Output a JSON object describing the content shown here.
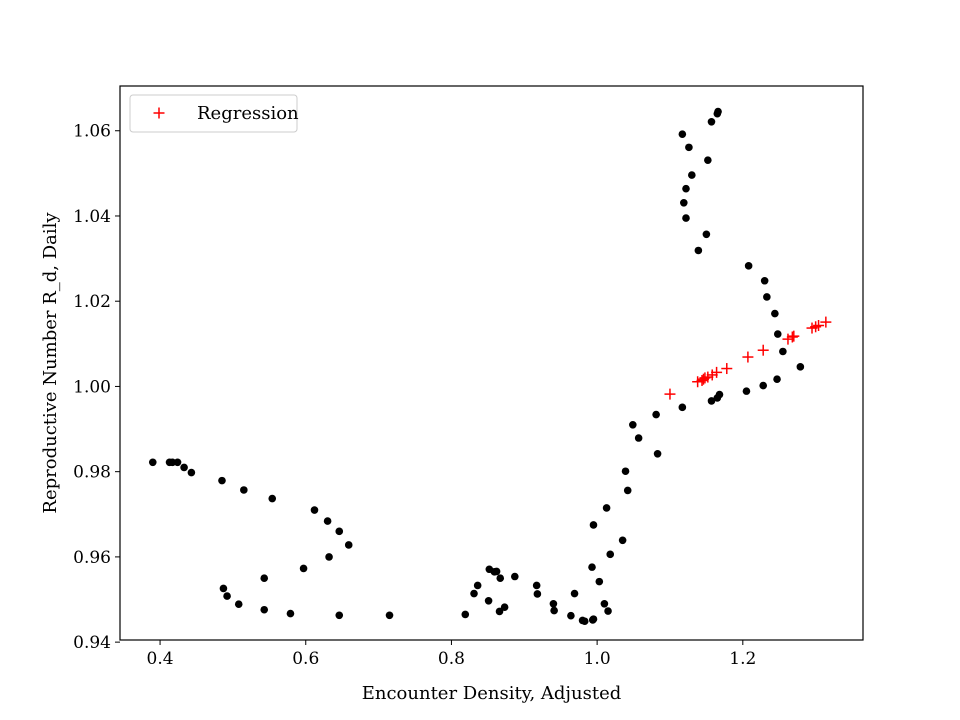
{
  "chart_data": {
    "type": "scatter",
    "title": "",
    "xlabel": "Encounter Density, Adjusted",
    "ylabel": "Reproductive Number R_d, Daily",
    "xlim": [
      0.345,
      1.365
    ],
    "ylim": [
      0.9405,
      1.0705
    ],
    "xticks": [
      0.4,
      0.6,
      0.8,
      1.0,
      1.2
    ],
    "xtick_labels": [
      "0.4",
      "0.6",
      "0.8",
      "1.0",
      "1.2"
    ],
    "yticks": [
      0.94,
      0.96,
      0.98,
      1.0,
      1.02,
      1.04,
      1.06
    ],
    "ytick_labels": [
      "0.94",
      "0.96",
      "0.98",
      "1.00",
      "1.02",
      "1.04",
      "1.06"
    ],
    "grid": false,
    "legend_position": "top-left",
    "series": [
      {
        "name": "",
        "marker": "circle",
        "color": "#000000",
        "points": [
          [
            0.39,
            0.9822
          ],
          [
            0.413,
            0.9822
          ],
          [
            0.417,
            0.9822
          ],
          [
            0.424,
            0.9822
          ],
          [
            0.433,
            0.981
          ],
          [
            0.443,
            0.9798
          ],
          [
            0.485,
            0.9779
          ],
          [
            0.515,
            0.9757
          ],
          [
            0.554,
            0.9737
          ],
          [
            0.612,
            0.971
          ],
          [
            0.63,
            0.9684
          ],
          [
            0.646,
            0.966
          ],
          [
            0.659,
            0.9628
          ],
          [
            0.632,
            0.96
          ],
          [
            0.597,
            0.9573
          ],
          [
            0.543,
            0.955
          ],
          [
            0.487,
            0.9526
          ],
          [
            0.492,
            0.9508
          ],
          [
            0.508,
            0.9489
          ],
          [
            0.543,
            0.9476
          ],
          [
            0.579,
            0.9467
          ],
          [
            0.646,
            0.9463
          ],
          [
            0.715,
            0.9463
          ],
          [
            0.819,
            0.9465
          ],
          [
            0.851,
            0.9497
          ],
          [
            0.831,
            0.9514
          ],
          [
            0.836,
            0.9533
          ],
          [
            0.852,
            0.9571
          ],
          [
            0.859,
            0.9565
          ],
          [
            0.862,
            0.9566
          ],
          [
            0.867,
            0.955
          ],
          [
            0.887,
            0.9554
          ],
          [
            0.866,
            0.9472
          ],
          [
            0.873,
            0.9482
          ],
          [
            0.917,
            0.9533
          ],
          [
            0.918,
            0.9513
          ],
          [
            0.94,
            0.949
          ],
          [
            0.941,
            0.9474
          ],
          [
            0.964,
            0.9462
          ],
          [
            0.969,
            0.9514
          ],
          [
            0.98,
            0.9451
          ],
          [
            0.983,
            0.9449
          ],
          [
            0.994,
            0.9452
          ],
          [
            0.995,
            0.9454
          ],
          [
            1.003,
            0.9542
          ],
          [
            0.993,
            0.9576
          ],
          [
            1.01,
            0.949
          ],
          [
            1.015,
            0.9473
          ],
          [
            0.995,
            0.9675
          ],
          [
            1.013,
            0.9715
          ],
          [
            1.018,
            0.9606
          ],
          [
            1.035,
            0.9639
          ],
          [
            1.039,
            0.9801
          ],
          [
            1.042,
            0.9756
          ],
          [
            1.049,
            0.991
          ],
          [
            1.057,
            0.9879
          ],
          [
            1.081,
            0.9934
          ],
          [
            1.083,
            0.9842
          ],
          [
            1.117,
            0.9951
          ],
          [
            1.157,
            0.9966
          ],
          [
            1.165,
            0.9973
          ],
          [
            1.168,
            0.9981
          ],
          [
            1.205,
            0.9989
          ],
          [
            1.228,
            1.0002
          ],
          [
            1.247,
            1.0017
          ],
          [
            1.279,
            1.0046
          ],
          [
            1.255,
            1.0082
          ],
          [
            1.248,
            1.0123
          ],
          [
            1.244,
            1.0171
          ],
          [
            1.233,
            1.021
          ],
          [
            1.23,
            1.0248
          ],
          [
            1.208,
            1.0283
          ],
          [
            1.139,
            1.0319
          ],
          [
            1.15,
            1.0357
          ],
          [
            1.122,
            1.0395
          ],
          [
            1.119,
            1.0431
          ],
          [
            1.122,
            1.0464
          ],
          [
            1.13,
            1.0496
          ],
          [
            1.152,
            1.0531
          ],
          [
            1.126,
            1.0561
          ],
          [
            1.117,
            1.0592
          ],
          [
            1.157,
            1.0621
          ],
          [
            1.165,
            1.064
          ],
          [
            1.166,
            1.0645
          ]
        ]
      },
      {
        "name": "Regression",
        "marker": "plus",
        "color": "#ff0000",
        "points": [
          [
            1.1,
            0.9982
          ],
          [
            1.138,
            1.0011
          ],
          [
            1.144,
            1.0014
          ],
          [
            1.146,
            1.0017
          ],
          [
            1.148,
            1.002
          ],
          [
            1.152,
            1.0022
          ],
          [
            1.158,
            1.0027
          ],
          [
            1.164,
            1.0033
          ],
          [
            1.178,
            1.0042
          ],
          [
            1.207,
            1.0069
          ],
          [
            1.228,
            1.0085
          ],
          [
            1.262,
            1.0111
          ],
          [
            1.268,
            1.0116
          ],
          [
            1.27,
            1.0118
          ],
          [
            1.295,
            1.0137
          ],
          [
            1.3,
            1.014
          ],
          [
            1.304,
            1.0143
          ],
          [
            1.314,
            1.0151
          ]
        ]
      }
    ]
  }
}
